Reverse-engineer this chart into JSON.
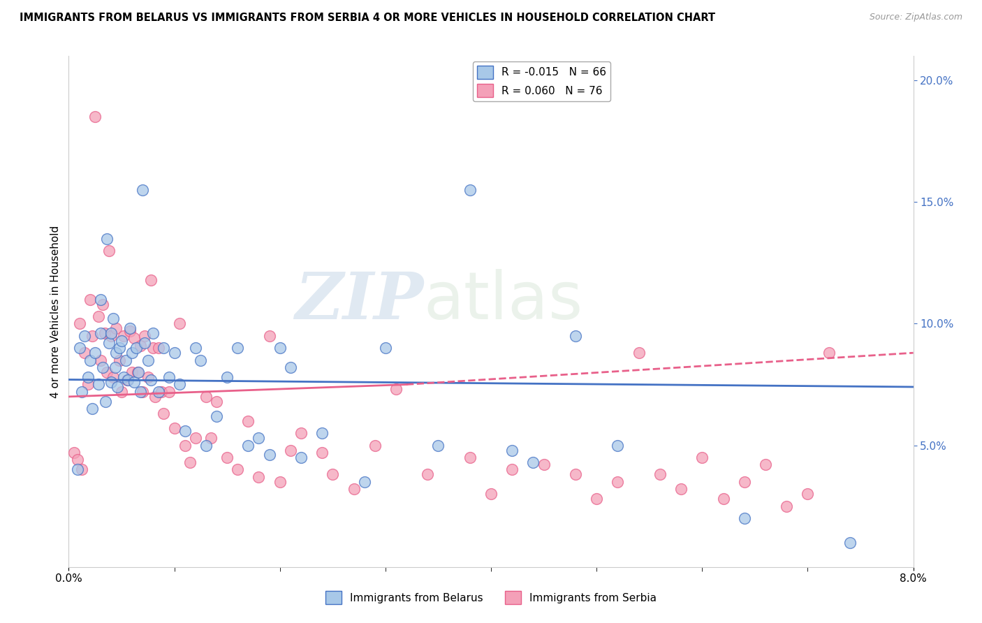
{
  "title": "IMMIGRANTS FROM BELARUS VS IMMIGRANTS FROM SERBIA 4 OR MORE VEHICLES IN HOUSEHOLD CORRELATION CHART",
  "source": "Source: ZipAtlas.com",
  "ylabel_left": "4 or more Vehicles in Household",
  "xlim": [
    0.0,
    0.08
  ],
  "ylim": [
    0.0,
    0.21
  ],
  "x_ticks": [
    0.0,
    0.08
  ],
  "y_ticks_right": [
    0.05,
    0.1,
    0.15,
    0.2
  ],
  "legend_r_belarus": "-0.015",
  "legend_n_belarus": "66",
  "legend_r_serbia": "0.060",
  "legend_n_serbia": "76",
  "color_belarus": "#a8c8e8",
  "color_serbia": "#f4a0b8",
  "color_belarus_line": "#4472c4",
  "color_serbia_line": "#e8608a",
  "background_color": "#ffffff",
  "grid_color": "#d8d8d8",
  "watermark_1": "ZIP",
  "watermark_2": "atlas",
  "belarus_x": [
    0.0008,
    0.001,
    0.0012,
    0.0015,
    0.0018,
    0.002,
    0.0022,
    0.0025,
    0.0028,
    0.003,
    0.003,
    0.0032,
    0.0035,
    0.0036,
    0.0038,
    0.004,
    0.004,
    0.0042,
    0.0044,
    0.0045,
    0.0046,
    0.0048,
    0.005,
    0.0052,
    0.0054,
    0.0056,
    0.0058,
    0.006,
    0.0062,
    0.0064,
    0.0066,
    0.0068,
    0.007,
    0.0072,
    0.0075,
    0.0078,
    0.008,
    0.0085,
    0.009,
    0.0095,
    0.01,
    0.0105,
    0.011,
    0.012,
    0.0125,
    0.013,
    0.014,
    0.015,
    0.016,
    0.017,
    0.018,
    0.019,
    0.02,
    0.021,
    0.022,
    0.024,
    0.028,
    0.03,
    0.035,
    0.038,
    0.042,
    0.044,
    0.048,
    0.052,
    0.064,
    0.074
  ],
  "belarus_y": [
    0.04,
    0.09,
    0.072,
    0.095,
    0.078,
    0.085,
    0.065,
    0.088,
    0.075,
    0.11,
    0.096,
    0.082,
    0.068,
    0.135,
    0.092,
    0.096,
    0.076,
    0.102,
    0.082,
    0.088,
    0.074,
    0.09,
    0.093,
    0.078,
    0.085,
    0.077,
    0.098,
    0.088,
    0.076,
    0.09,
    0.08,
    0.072,
    0.155,
    0.092,
    0.085,
    0.077,
    0.096,
    0.072,
    0.09,
    0.078,
    0.088,
    0.075,
    0.056,
    0.09,
    0.085,
    0.05,
    0.062,
    0.078,
    0.09,
    0.05,
    0.053,
    0.046,
    0.09,
    0.082,
    0.045,
    0.055,
    0.035,
    0.09,
    0.05,
    0.155,
    0.048,
    0.043,
    0.095,
    0.05,
    0.02,
    0.01
  ],
  "serbia_x": [
    0.0005,
    0.0008,
    0.001,
    0.0012,
    0.0015,
    0.0018,
    0.002,
    0.0022,
    0.0025,
    0.0028,
    0.003,
    0.0032,
    0.0034,
    0.0036,
    0.0038,
    0.004,
    0.0042,
    0.0045,
    0.0048,
    0.005,
    0.0052,
    0.0055,
    0.0058,
    0.006,
    0.0062,
    0.0065,
    0.0068,
    0.007,
    0.0072,
    0.0075,
    0.0078,
    0.008,
    0.0082,
    0.0085,
    0.0088,
    0.009,
    0.0095,
    0.01,
    0.0105,
    0.011,
    0.0115,
    0.012,
    0.013,
    0.0135,
    0.014,
    0.015,
    0.016,
    0.017,
    0.018,
    0.019,
    0.02,
    0.021,
    0.022,
    0.024,
    0.025,
    0.027,
    0.029,
    0.031,
    0.034,
    0.038,
    0.04,
    0.042,
    0.045,
    0.048,
    0.05,
    0.052,
    0.054,
    0.056,
    0.058,
    0.06,
    0.062,
    0.064,
    0.066,
    0.068,
    0.07,
    0.072
  ],
  "serbia_y": [
    0.047,
    0.044,
    0.1,
    0.04,
    0.088,
    0.075,
    0.11,
    0.095,
    0.185,
    0.103,
    0.085,
    0.108,
    0.096,
    0.08,
    0.13,
    0.095,
    0.078,
    0.098,
    0.085,
    0.072,
    0.095,
    0.077,
    0.097,
    0.08,
    0.094,
    0.08,
    0.091,
    0.072,
    0.095,
    0.078,
    0.118,
    0.09,
    0.07,
    0.09,
    0.072,
    0.063,
    0.072,
    0.057,
    0.1,
    0.05,
    0.043,
    0.053,
    0.07,
    0.053,
    0.068,
    0.045,
    0.04,
    0.06,
    0.037,
    0.095,
    0.035,
    0.048,
    0.055,
    0.047,
    0.038,
    0.032,
    0.05,
    0.073,
    0.038,
    0.045,
    0.03,
    0.04,
    0.042,
    0.038,
    0.028,
    0.035,
    0.088,
    0.038,
    0.032,
    0.045,
    0.028,
    0.035,
    0.042,
    0.025,
    0.03,
    0.088
  ],
  "trend_belarus_x0": 0.0,
  "trend_belarus_x1": 0.08,
  "trend_belarus_y0": 0.077,
  "trend_belarus_y1": 0.074,
  "trend_serbia_solid_x0": 0.0,
  "trend_serbia_solid_x1": 0.032,
  "trend_serbia_solid_y0": 0.07,
  "trend_serbia_solid_y1": 0.075,
  "trend_serbia_dashed_x0": 0.032,
  "trend_serbia_dashed_x1": 0.08,
  "trend_serbia_dashed_y0": 0.075,
  "trend_serbia_dashed_y1": 0.088
}
